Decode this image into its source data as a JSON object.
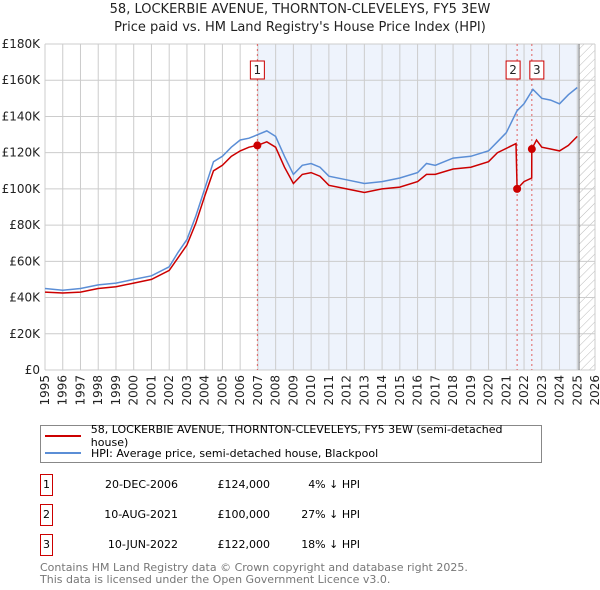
{
  "chart_data": {
    "type": "line",
    "title": "58, LOCKERBIE AVENUE, THORNTON-CLEVELEYS, FY5 3EW",
    "subtitle": "Price paid vs. HM Land Registry's House Price Index (HPI)",
    "xlim": [
      1995,
      2026
    ],
    "ylim": [
      0,
      180000
    ],
    "x_ticks": [
      "1995",
      "1996",
      "1997",
      "1998",
      "1999",
      "2000",
      "2001",
      "2002",
      "2003",
      "2004",
      "2005",
      "2006",
      "2007",
      "2008",
      "2009",
      "2010",
      "2011",
      "2012",
      "2013",
      "2014",
      "2015",
      "2016",
      "2017",
      "2018",
      "2019",
      "2020",
      "2021",
      "2022",
      "2023",
      "2024",
      "2025",
      "2026"
    ],
    "y_ticks": [
      "£0",
      "£20K",
      "£40K",
      "£60K",
      "£80K",
      "£100K",
      "£120K",
      "£140K",
      "£160K",
      "£180K"
    ],
    "y_tick_values": [
      0,
      20000,
      40000,
      60000,
      80000,
      100000,
      120000,
      140000,
      160000,
      180000
    ],
    "grid": true,
    "hpi_series": {
      "name": "HPI: Average price, semi-detached house, Blackpool",
      "color": "#5b8ed6",
      "x": [
        1995,
        1996,
        1997,
        1998,
        1999,
        2000,
        2001,
        2002,
        2002.5,
        2003,
        2003.5,
        2004,
        2004.5,
        2005,
        2005.5,
        2006,
        2006.5,
        2007,
        2007.5,
        2008,
        2008.5,
        2009,
        2009.5,
        2010,
        2010.5,
        2011,
        2012,
        2013,
        2014,
        2015,
        2016,
        2016.5,
        2017,
        2018,
        2019,
        2020,
        2020.5,
        2021,
        2021.6,
        2022,
        2022.5,
        2023,
        2023.5,
        2024,
        2024.5,
        2025
      ],
      "y": [
        45000,
        44000,
        45000,
        47000,
        48000,
        50000,
        52000,
        57000,
        65000,
        72000,
        85000,
        100000,
        115000,
        118000,
        123000,
        127000,
        128000,
        130000,
        132000,
        129000,
        118000,
        108000,
        113000,
        114000,
        112000,
        107000,
        105000,
        103000,
        104000,
        106000,
        109000,
        114000,
        113000,
        117000,
        118000,
        121000,
        126000,
        131000,
        143000,
        147000,
        155000,
        150000,
        149000,
        147000,
        152000,
        156000
      ]
    },
    "price_series": {
      "name": "58, LOCKERBIE AVENUE, THORNTON-CLEVELEYS, FY5 3EW (semi-detached house)",
      "color": "#cc0000",
      "x": [
        1995,
        1996,
        1997,
        1998,
        1999,
        2000,
        2001,
        2002,
        2002.5,
        2003,
        2003.5,
        2004,
        2004.5,
        2005,
        2005.5,
        2006,
        2006.5,
        2006.97,
        2007.5,
        2008,
        2008.5,
        2009,
        2009.5,
        2010,
        2010.5,
        2011,
        2012,
        2013,
        2014,
        2015,
        2016,
        2016.5,
        2017,
        2018,
        2019,
        2020,
        2020.5,
        2021.55,
        2021.61,
        2022,
        2022.43,
        2022.44,
        2022.7,
        2023,
        2023.5,
        2024,
        2024.5,
        2025
      ],
      "y": [
        43000,
        42500,
        43000,
        45000,
        46000,
        48000,
        50000,
        55000,
        62000,
        69000,
        81000,
        96000,
        110000,
        113000,
        118000,
        121000,
        123000,
        124000,
        126000,
        123000,
        112000,
        103000,
        108000,
        109000,
        107000,
        102000,
        100000,
        98000,
        100000,
        101000,
        104000,
        108000,
        108000,
        111000,
        112000,
        115000,
        120000,
        125000,
        100000,
        104000,
        106000,
        122000,
        127000,
        123000,
        122000,
        121000,
        124000,
        129000
      ]
    },
    "sales": [
      {
        "label": "1",
        "x": 2006.97,
        "date": "20-DEC-2006",
        "price": "£124,000",
        "value": 124000,
        "hpi": "4% ↓ HPI"
      },
      {
        "label": "2",
        "x": 2021.61,
        "date": "10-AUG-2021",
        "price": "£100,000",
        "value": 100000,
        "hpi": "27% ↓ HPI"
      },
      {
        "label": "3",
        "x": 2022.44,
        "date": "10-JUN-2022",
        "price": "£122,000",
        "value": 122000,
        "hpi": "18% ↓ HPI"
      }
    ],
    "legend_placement": "below"
  },
  "footer": {
    "line1": "Contains HM Land Registry data © Crown copyright and database right 2025.",
    "line2": "This data is licensed under the Open Government Licence v3.0."
  }
}
